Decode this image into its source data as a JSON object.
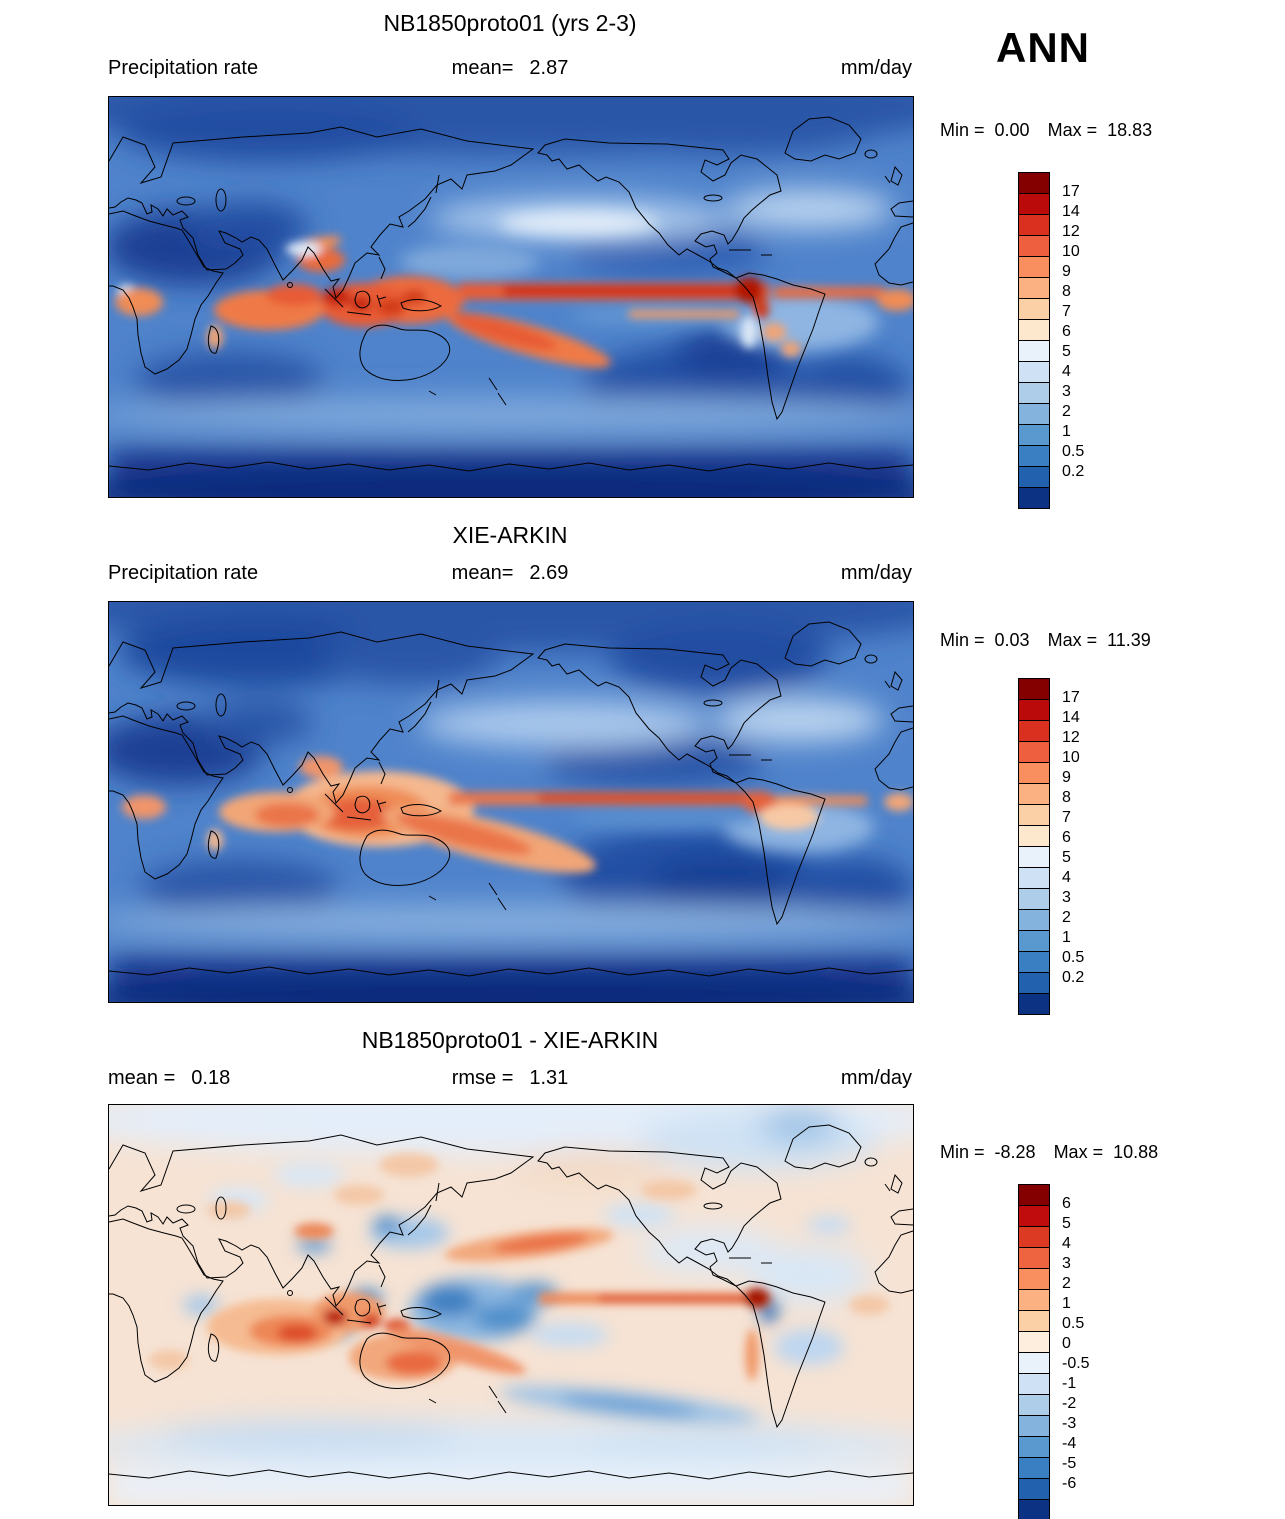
{
  "season_label": "ANN",
  "panels": [
    {
      "title": "NB1850proto01 (yrs 2-3)",
      "row": {
        "left_label": "Precipitation rate",
        "left_value": "",
        "center_label": "mean=",
        "center_value": "2.87",
        "right_label": "mm/day"
      },
      "stats": {
        "min_label": "Min =",
        "min_value": "0.00",
        "max_label": "Max =",
        "max_value": "18.83"
      },
      "colorbar": {
        "labels": [
          "17",
          "14",
          "12",
          "10",
          "9",
          "8",
          "7",
          "6",
          "5",
          "4",
          "3",
          "2",
          "1",
          "0.5",
          "0.2"
        ],
        "colors": [
          "#840000",
          "#bb0a0a",
          "#d93020",
          "#ee5f40",
          "#f98e5e",
          "#fbb181",
          "#fcd0a7",
          "#fde8cd",
          "#e9f2fb",
          "#cfe2f5",
          "#aecde9",
          "#84b4dd",
          "#5a99d0",
          "#3a7fc2",
          "#2161ae",
          "#0c3383"
        ]
      }
    },
    {
      "title": "XIE-ARKIN",
      "row": {
        "left_label": "Precipitation rate",
        "left_value": "",
        "center_label": "mean=",
        "center_value": "2.69",
        "right_label": "mm/day"
      },
      "stats": {
        "min_label": "Min =",
        "min_value": "0.03",
        "max_label": "Max =",
        "max_value": "11.39"
      },
      "colorbar": {
        "labels": [
          "17",
          "14",
          "12",
          "10",
          "9",
          "8",
          "7",
          "6",
          "5",
          "4",
          "3",
          "2",
          "1",
          "0.5",
          "0.2"
        ],
        "colors": [
          "#840000",
          "#bb0a0a",
          "#d93020",
          "#ee5f40",
          "#f98e5e",
          "#fbb181",
          "#fcd0a7",
          "#fde8cd",
          "#e9f2fb",
          "#cfe2f5",
          "#aecde9",
          "#84b4dd",
          "#5a99d0",
          "#3a7fc2",
          "#2161ae",
          "#0c3383"
        ]
      }
    },
    {
      "title": "NB1850proto01 - XIE-ARKIN",
      "row": {
        "left_label": "mean =",
        "left_value": "0.18",
        "center_label": "rmse =",
        "center_value": "1.31",
        "right_label": "mm/day"
      },
      "stats": {
        "min_label": "Min =",
        "min_value": "-8.28",
        "max_label": "Max =",
        "max_value": "10.88"
      },
      "colorbar": {
        "labels": [
          "6",
          "5",
          "4",
          "3",
          "2",
          "1",
          "0.5",
          "0",
          "-0.5",
          "-1",
          "-2",
          "-3",
          "-4",
          "-5",
          "-6"
        ],
        "colors": [
          "#840000",
          "#c00c0c",
          "#dd3a24",
          "#ee6440",
          "#f98e5e",
          "#fbb181",
          "#fcd0a7",
          "#fdeede",
          "#e9f2fb",
          "#cfe2f5",
          "#aecde9",
          "#84b4dd",
          "#5a99d0",
          "#3a7fc2",
          "#2161ae",
          "#0c3383"
        ]
      }
    }
  ],
  "chart_data": [
    {
      "type": "heatmap",
      "title": "NB1850proto01 (yrs 2-3)",
      "variable": "Precipitation rate",
      "units": "mm/day",
      "season": "ANN",
      "mean": 2.87,
      "min": 0.0,
      "max": 18.83,
      "contour_levels": [
        0.2,
        0.5,
        1,
        2,
        3,
        4,
        5,
        6,
        7,
        8,
        9,
        10,
        12,
        14,
        17
      ],
      "region": "global lat-lon map, 0-360E",
      "description": "Annual-mean model precipitation, years 2-3. Intense ITCZ band (8-17 mm/day) stretched across the equatorial Pacific to South America, maxima over Indonesia, the west Pacific warm pool, the Indian Ocean and the SPCZ; minima (<0.5 mm/day) over the Sahara/Arabia, subtropical eastern oceans, poles and Antarctica."
    },
    {
      "type": "heatmap",
      "title": "XIE-ARKIN",
      "variable": "Precipitation rate",
      "units": "mm/day",
      "season": "ANN",
      "mean": 2.69,
      "min": 0.03,
      "max": 11.39,
      "contour_levels": [
        0.2,
        0.5,
        1,
        2,
        3,
        4,
        5,
        6,
        7,
        8,
        9,
        10,
        12,
        14,
        17
      ],
      "region": "global lat-lon map, 0-360E",
      "description": "Xie-Arkin observed annual-mean precipitation climatology. Broad warm-pool maximum over Indonesia/west Pacific merging into the Pacific ITCZ and SPCZ; dry subtropical oceans, Sahara and polar regions."
    },
    {
      "type": "heatmap",
      "title": "NB1850proto01 - XIE-ARKIN",
      "variable": "Precipitation rate difference (model minus obs)",
      "units": "mm/day",
      "season": "ANN",
      "mean": 0.18,
      "rmse": 1.31,
      "min": -8.28,
      "max": 10.88,
      "contour_levels": [
        -6,
        -5,
        -4,
        -3,
        -2,
        -1,
        -0.5,
        0,
        0.5,
        1,
        2,
        3,
        4,
        5,
        6
      ],
      "region": "global lat-lon map, 0-360E",
      "description": "Difference map: wet biases (red) over the Indian Ocean, Maritime Continent, equatorial east Pacific ITCZ and near the Andes; dry biases (blue) over the west-central equatorial Pacific, South Pacific and parts of the storm tracks; near-zero elsewhere."
    }
  ]
}
